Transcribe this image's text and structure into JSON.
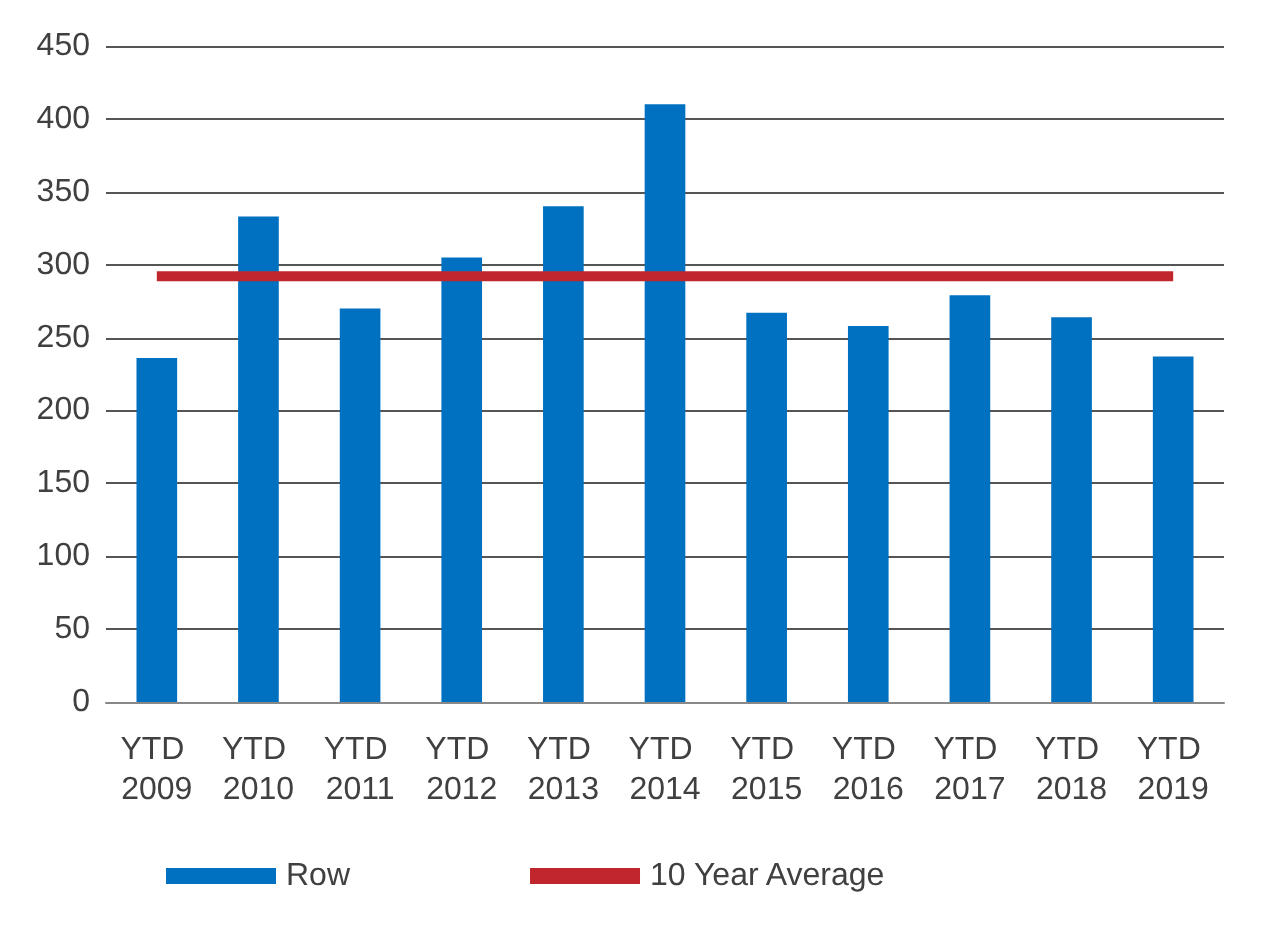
{
  "chart_data": {
    "type": "bar",
    "categories": [
      "YTD 2009",
      "YTD 2010",
      "YTD 2011",
      "YTD 2012",
      "YTD 2013",
      "YTD 2014",
      "YTD 2015",
      "YTD 2016",
      "YTD 2017",
      "YTD 2018",
      "YTD 2019"
    ],
    "series": [
      {
        "name": "Row",
        "color": "#0070c0",
        "values": [
          236,
          333,
          270,
          305,
          340,
          410,
          267,
          258,
          279,
          264,
          237
        ]
      },
      {
        "name": "10 Year Average",
        "type": "line",
        "color": "#c0272d",
        "marker": "none",
        "values": [
          292,
          292,
          292,
          292,
          292,
          292,
          292,
          292,
          292,
          292,
          292
        ]
      }
    ],
    "ylim": [
      0,
      450
    ],
    "yticks": [
      0,
      50,
      100,
      150,
      200,
      250,
      300,
      350,
      400,
      450
    ],
    "grid": "y",
    "legend": "bottom"
  }
}
